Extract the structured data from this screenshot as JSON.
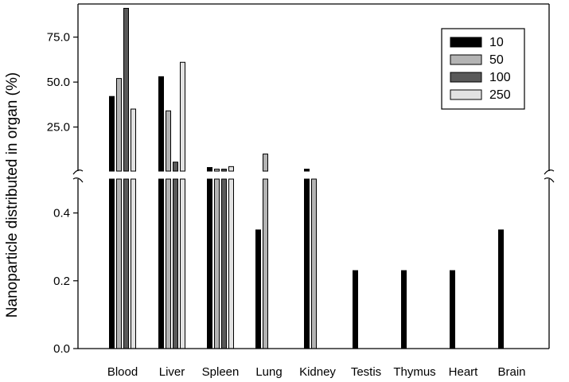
{
  "chart_data": {
    "type": "bar",
    "title": "",
    "xlabel": "",
    "ylabel": "Nanoparticle distributed in organ (%)",
    "categories": [
      "Blood",
      "Liver",
      "Spleen",
      "Lung",
      "Kidney",
      "Testis",
      "Thymus",
      "Heart",
      "Brain"
    ],
    "series": [
      {
        "name": "10",
        "color": "#000000",
        "values": [
          42,
          53,
          2.5,
          0.35,
          1.0,
          0.23,
          0.23,
          0.23,
          0.35
        ]
      },
      {
        "name": "50",
        "color": "#b4b4b4",
        "values": [
          52,
          34,
          1.5,
          10,
          0.5,
          0,
          0,
          0,
          0
        ]
      },
      {
        "name": "100",
        "color": "#595959",
        "values": [
          91,
          5.5,
          1.5,
          0,
          0,
          0,
          0,
          0,
          0
        ]
      },
      {
        "name": "250",
        "color": "#e2e2e2",
        "values": [
          35,
          61,
          3,
          0,
          0,
          0,
          0,
          0,
          0
        ]
      }
    ],
    "axis": {
      "broken": true,
      "lower_segment": {
        "ylim": [
          0,
          0.5
        ],
        "ticks": [
          0.0,
          0.2,
          0.4
        ],
        "tick_labels": [
          "0.0",
          "0.2",
          "0.4"
        ]
      },
      "upper_segment": {
        "ylim": [
          0.5,
          95
        ],
        "ticks": [
          25,
          50,
          75
        ],
        "tick_labels": [
          "25.0",
          "50.0",
          "75.0"
        ]
      }
    },
    "legend": {
      "placement": "top-right",
      "entries": [
        "10",
        "50",
        "100",
        "250"
      ]
    },
    "grid": false
  }
}
